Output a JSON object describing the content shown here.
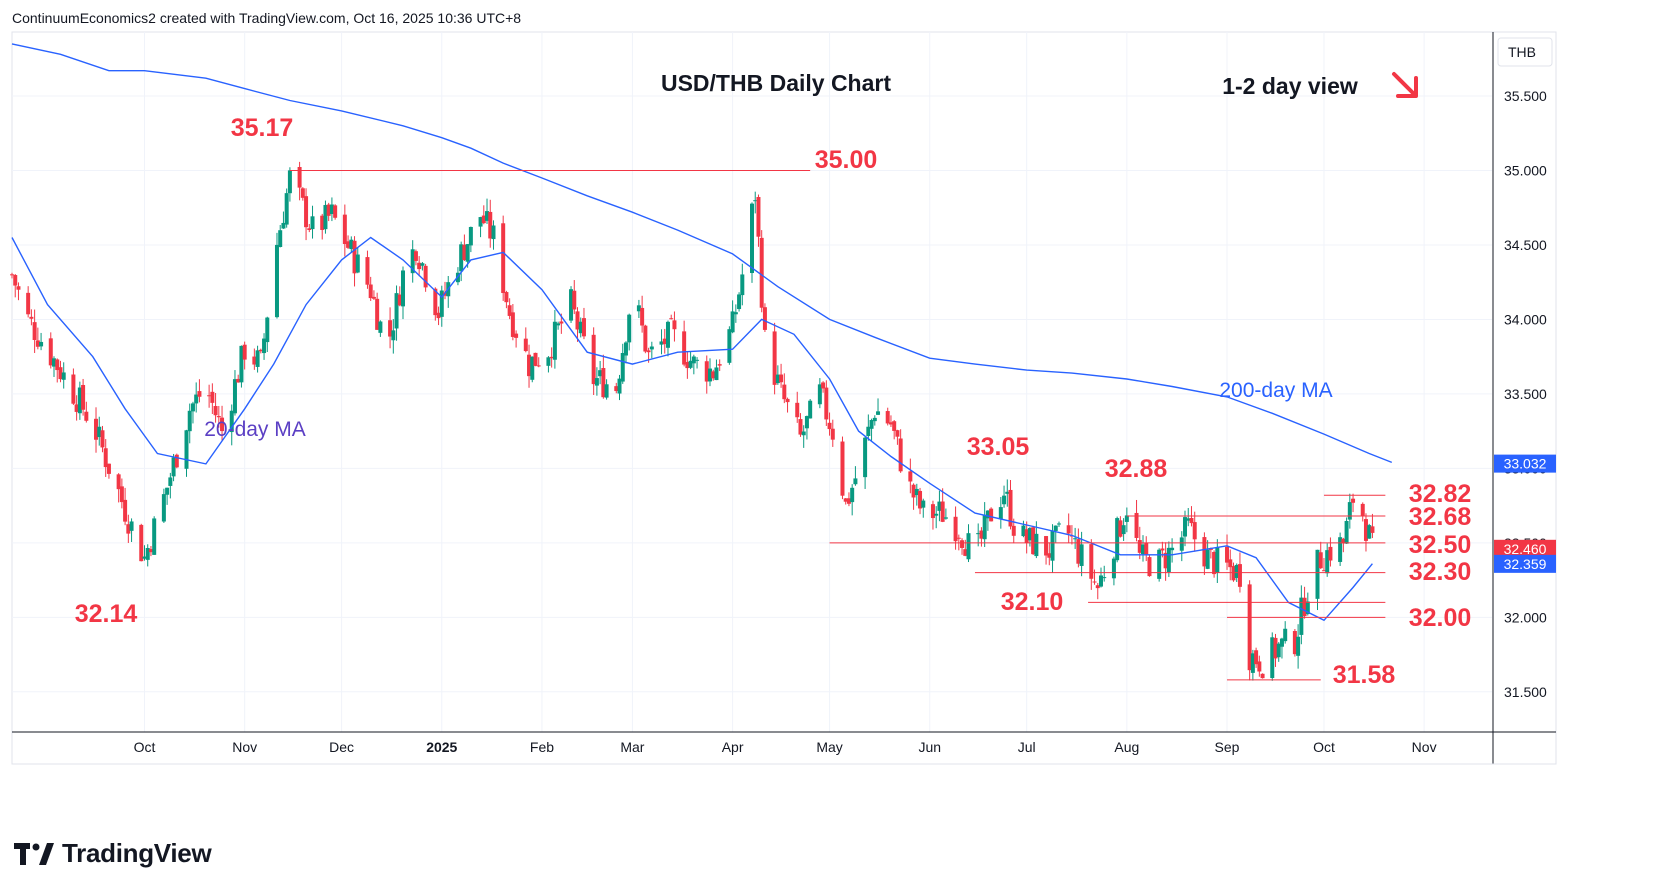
{
  "header": {
    "caption": "ContinuumEconomics2 created with TradingView.com, Oct 16, 2025 10:36 UTC+8"
  },
  "brand": {
    "name": "TradingView"
  },
  "colors": {
    "up": "#089981",
    "down": "#f23645",
    "ma": "#2962ff",
    "ma20_label": "#5b3fc4",
    "level": "#f23645"
  },
  "chart_data": {
    "type": "candlestick",
    "title": "USD/THB Daily Chart",
    "subtitle": "1-2 day view",
    "view_direction": "down-right arrow",
    "currency": "THB",
    "ylim": [
      31.23,
      35.93
    ],
    "y_ticks": [
      "35.500",
      "35.000",
      "34.500",
      "34.000",
      "33.500",
      "33.000",
      "32.500",
      "32.000",
      "31.500"
    ],
    "x_ticks": [
      {
        "label": "Oct",
        "date": "2024-10-01"
      },
      {
        "label": "Nov",
        "date": "2024-11-01"
      },
      {
        "label": "Dec",
        "date": "2024-12-01"
      },
      {
        "label": "2025",
        "date": "2025-01-01",
        "bold": true
      },
      {
        "label": "Feb",
        "date": "2025-02-01"
      },
      {
        "label": "Mar",
        "date": "2025-03-01"
      },
      {
        "label": "Apr",
        "date": "2025-04-01"
      },
      {
        "label": "May",
        "date": "2025-05-01"
      },
      {
        "label": "Jun",
        "date": "2025-06-01"
      },
      {
        "label": "Jul",
        "date": "2025-07-01"
      },
      {
        "label": "Aug",
        "date": "2025-08-01"
      },
      {
        "label": "Sep",
        "date": "2025-09-01"
      },
      {
        "label": "Oct",
        "date": "2025-10-01"
      },
      {
        "label": "Nov",
        "date": "2025-11-01"
      }
    ],
    "price_badges": [
      {
        "value": "33.032",
        "color": "#2962ff"
      },
      {
        "value": "32.460",
        "color": "#f23645"
      },
      {
        "value": "32.359",
        "color": "#2962ff"
      }
    ],
    "ma_labels": [
      {
        "text": "20-day MA",
        "color": "#5b3fc4"
      },
      {
        "text": "200-day MA",
        "color": "#2962ff"
      }
    ],
    "series": [
      {
        "name": "200-day MA",
        "points": [
          [
            "2024-08-21",
            35.85
          ],
          [
            "2024-09-05",
            35.78
          ],
          [
            "2024-09-20",
            35.67
          ],
          [
            "2024-10-01",
            35.67
          ],
          [
            "2024-10-20",
            35.62
          ],
          [
            "2024-11-01",
            35.55
          ],
          [
            "2024-11-15",
            35.47
          ],
          [
            "2024-12-01",
            35.4
          ],
          [
            "2024-12-20",
            35.3
          ],
          [
            "2025-01-01",
            35.22
          ],
          [
            "2025-01-10",
            35.15
          ],
          [
            "2025-01-20",
            35.05
          ],
          [
            "2025-02-01",
            34.95
          ],
          [
            "2025-02-15",
            34.83
          ],
          [
            "2025-03-01",
            34.72
          ],
          [
            "2025-03-15",
            34.6
          ],
          [
            "2025-04-01",
            34.44
          ],
          [
            "2025-04-15",
            34.22
          ],
          [
            "2025-05-01",
            34.0
          ],
          [
            "2025-05-15",
            33.88
          ],
          [
            "2025-06-01",
            33.74
          ],
          [
            "2025-06-15",
            33.7
          ],
          [
            "2025-07-01",
            33.66
          ],
          [
            "2025-07-15",
            33.64
          ],
          [
            "2025-08-01",
            33.6
          ],
          [
            "2025-08-15",
            33.55
          ],
          [
            "2025-09-01",
            33.48
          ],
          [
            "2025-09-15",
            33.37
          ],
          [
            "2025-10-01",
            33.23
          ],
          [
            "2025-10-15",
            33.1
          ],
          [
            "2025-10-22",
            33.04
          ]
        ]
      },
      {
        "name": "20-day MA",
        "points": [
          [
            "2024-08-21",
            34.55
          ],
          [
            "2024-09-01",
            34.1
          ],
          [
            "2024-09-15",
            33.75
          ],
          [
            "2024-09-25",
            33.4
          ],
          [
            "2024-10-05",
            33.1
          ],
          [
            "2024-10-20",
            33.03
          ],
          [
            "2024-11-01",
            33.4
          ],
          [
            "2024-11-10",
            33.7
          ],
          [
            "2024-11-20",
            34.1
          ],
          [
            "2024-12-01",
            34.4
          ],
          [
            "2024-12-10",
            34.55
          ],
          [
            "2024-12-20",
            34.4
          ],
          [
            "2025-01-01",
            34.15
          ],
          [
            "2025-01-10",
            34.4
          ],
          [
            "2025-01-20",
            34.45
          ],
          [
            "2025-02-01",
            34.2
          ],
          [
            "2025-02-15",
            33.78
          ],
          [
            "2025-03-01",
            33.7
          ],
          [
            "2025-03-15",
            33.78
          ],
          [
            "2025-04-01",
            33.8
          ],
          [
            "2025-04-10",
            34.0
          ],
          [
            "2025-04-20",
            33.9
          ],
          [
            "2025-05-01",
            33.6
          ],
          [
            "2025-05-10",
            33.25
          ],
          [
            "2025-05-20",
            33.08
          ],
          [
            "2025-06-01",
            32.9
          ],
          [
            "2025-06-15",
            32.7
          ],
          [
            "2025-07-01",
            32.62
          ],
          [
            "2025-07-15",
            32.55
          ],
          [
            "2025-07-30",
            32.42
          ],
          [
            "2025-08-15",
            32.42
          ],
          [
            "2025-09-01",
            32.48
          ],
          [
            "2025-09-10",
            32.4
          ],
          [
            "2025-09-20",
            32.1
          ],
          [
            "2025-10-01",
            31.98
          ],
          [
            "2025-10-10",
            32.2
          ],
          [
            "2025-10-16",
            32.36
          ]
        ]
      }
    ],
    "levels": [
      {
        "label": "35.17",
        "value": 35.17
      },
      {
        "label": "35.00",
        "value": 35.0,
        "from": "2024-11-15",
        "to": "2025-04-25"
      },
      {
        "label": "33.05",
        "value": 33.05
      },
      {
        "label": "32.88",
        "value": 32.88
      },
      {
        "label": "32.82",
        "value": 32.82,
        "from": "2025-10-01",
        "to": "2025-10-20"
      },
      {
        "label": "32.68",
        "value": 32.68,
        "from": "2025-08-01",
        "to": "2025-10-20"
      },
      {
        "label": "32.50",
        "value": 32.5,
        "from": "2025-05-01",
        "to": "2025-10-20"
      },
      {
        "label": "32.30",
        "value": 32.3,
        "from": "2025-06-15",
        "to": "2025-10-20"
      },
      {
        "label": "32.10",
        "value": 32.1,
        "from": "2025-07-20",
        "to": "2025-10-20"
      },
      {
        "label": "32.00",
        "value": 32.0,
        "from": "2025-09-01",
        "to": "2025-10-20"
      },
      {
        "label": "31.58",
        "value": 31.58,
        "from": "2025-09-01",
        "to": "2025-09-30"
      },
      {
        "label": "32.14",
        "value": 32.14
      }
    ],
    "ohlc_anchor_points": [
      [
        "2024-08-21",
        34.3
      ],
      [
        "2024-08-26",
        34.0
      ],
      [
        "2024-09-01",
        33.8
      ],
      [
        "2024-09-08",
        33.55
      ],
      [
        "2024-09-15",
        33.3
      ],
      [
        "2024-09-22",
        32.9
      ],
      [
        "2024-09-28",
        32.55
      ],
      [
        "2024-10-01",
        32.4
      ],
      [
        "2024-10-07",
        32.8
      ],
      [
        "2024-10-15",
        33.4
      ],
      [
        "2024-10-20",
        33.55
      ],
      [
        "2024-10-25",
        33.25
      ],
      [
        "2024-11-01",
        33.8
      ],
      [
        "2024-11-06",
        33.7
      ],
      [
        "2024-11-10",
        34.4
      ],
      [
        "2024-11-15",
        34.95
      ],
      [
        "2024-11-22",
        34.6
      ],
      [
        "2024-11-28",
        34.7
      ],
      [
        "2024-12-04",
        34.45
      ],
      [
        "2024-12-10",
        34.2
      ],
      [
        "2024-12-15",
        33.8
      ],
      [
        "2024-12-20",
        34.3
      ],
      [
        "2024-12-24",
        34.5
      ],
      [
        "2024-12-31",
        34.05
      ],
      [
        "2025-01-06",
        34.4
      ],
      [
        "2025-01-13",
        34.7
      ],
      [
        "2025-01-17",
        34.55
      ],
      [
        "2025-01-22",
        34.05
      ],
      [
        "2025-01-28",
        33.7
      ],
      [
        "2025-02-03",
        33.8
      ],
      [
        "2025-02-10",
        34.1
      ],
      [
        "2025-02-17",
        33.6
      ],
      [
        "2025-02-24",
        33.55
      ],
      [
        "2025-03-01",
        34.2
      ],
      [
        "2025-03-06",
        33.75
      ],
      [
        "2025-03-13",
        33.9
      ],
      [
        "2025-03-20",
        33.7
      ],
      [
        "2025-03-26",
        33.65
      ],
      [
        "2025-04-01",
        33.95
      ],
      [
        "2025-04-04",
        34.3
      ],
      [
        "2025-04-08",
        34.85
      ],
      [
        "2025-04-11",
        33.85
      ],
      [
        "2025-04-16",
        33.5
      ],
      [
        "2025-04-22",
        33.2
      ],
      [
        "2025-04-28",
        33.5
      ],
      [
        "2025-05-02",
        33.25
      ],
      [
        "2025-05-06",
        32.75
      ],
      [
        "2025-05-10",
        33.0
      ],
      [
        "2025-05-15",
        33.4
      ],
      [
        "2025-05-20",
        33.3
      ],
      [
        "2025-05-25",
        32.9
      ],
      [
        "2025-05-30",
        32.7
      ],
      [
        "2025-06-05",
        32.7
      ],
      [
        "2025-06-10",
        32.6
      ],
      [
        "2025-06-15",
        32.4
      ],
      [
        "2025-06-20",
        32.7
      ],
      [
        "2025-06-24",
        32.85
      ],
      [
        "2025-06-28",
        32.55
      ],
      [
        "2025-07-03",
        32.5
      ],
      [
        "2025-07-08",
        32.45
      ],
      [
        "2025-07-13",
        32.6
      ],
      [
        "2025-07-18",
        32.4
      ],
      [
        "2025-07-23",
        32.2
      ],
      [
        "2025-07-28",
        32.5
      ],
      [
        "2025-08-01",
        32.75
      ],
      [
        "2025-08-05",
        32.4
      ],
      [
        "2025-08-10",
        32.35
      ],
      [
        "2025-08-15",
        32.45
      ],
      [
        "2025-08-20",
        32.6
      ],
      [
        "2025-08-26",
        32.4
      ],
      [
        "2025-08-30",
        32.35
      ],
      [
        "2025-09-05",
        32.3
      ],
      [
        "2025-09-08",
        31.75
      ],
      [
        "2025-09-12",
        31.7
      ],
      [
        "2025-09-17",
        31.8
      ],
      [
        "2025-09-22",
        31.85
      ],
      [
        "2025-09-26",
        32.2
      ],
      [
        "2025-09-30",
        32.4
      ],
      [
        "2025-10-03",
        32.45
      ],
      [
        "2025-10-07",
        32.5
      ],
      [
        "2025-10-10",
        32.8
      ],
      [
        "2025-10-13",
        32.7
      ],
      [
        "2025-10-16",
        32.46
      ]
    ]
  }
}
